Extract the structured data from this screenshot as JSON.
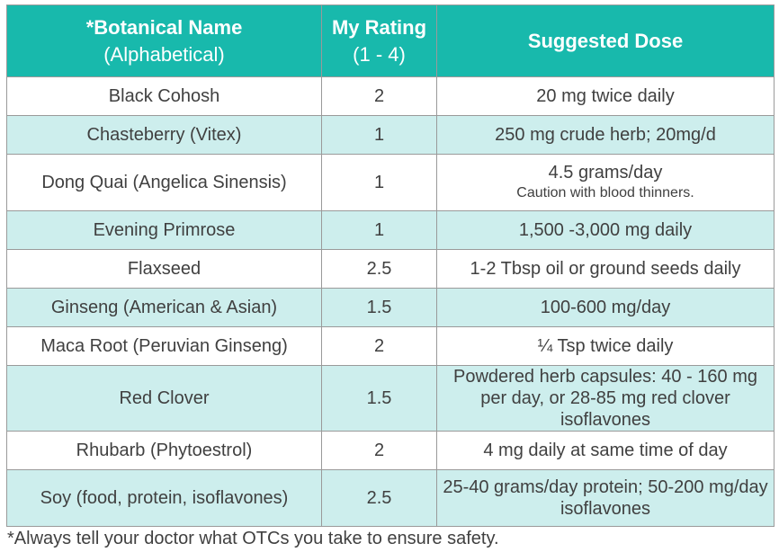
{
  "table": {
    "headers": [
      {
        "main": "*Botanical Name",
        "sub": "(Alphabetical)"
      },
      {
        "main": "My Rating",
        "sub": "(1 - 4)"
      },
      {
        "main": "Suggested Dose",
        "sub": ""
      }
    ],
    "rows": [
      {
        "name": "Black Cohosh",
        "rating": "2",
        "dose": "20 mg twice daily",
        "note": ""
      },
      {
        "name": "Chasteberry (Vitex)",
        "rating": "1",
        "dose": "250 mg crude herb; 20mg/d",
        "note": ""
      },
      {
        "name": "Dong Quai (Angelica Sinensis)",
        "rating": "1",
        "dose": "4.5 grams/day",
        "note": "Caution with blood thinners."
      },
      {
        "name": "Evening Primrose",
        "rating": "1",
        "dose": "1,500 -3,000 mg daily",
        "note": ""
      },
      {
        "name": "Flaxseed",
        "rating": "2.5",
        "dose": "1-2 Tbsp oil or ground seeds daily",
        "note": ""
      },
      {
        "name": "Ginseng (American & Asian)",
        "rating": "1.5",
        "dose": "100-600 mg/day",
        "note": ""
      },
      {
        "name": "Maca Root (Peruvian Ginseng)",
        "rating": "2",
        "dose": "¼ Tsp twice daily",
        "note": ""
      },
      {
        "name": "Red Clover",
        "rating": "1.5",
        "dose": "Powdered herb capsules: 40 - 160 mg per day, or 28-85 mg red clover isoflavones",
        "note": ""
      },
      {
        "name": "Rhubarb (Phytoestrol)",
        "rating": "2",
        "dose": "4 mg daily at same time of day",
        "note": ""
      },
      {
        "name": "Soy (food, protein, isoflavones)",
        "rating": "2.5",
        "dose": "25-40 grams/day protein; 50-200 mg/day isoflavones",
        "note": ""
      }
    ]
  },
  "footnote": "*Always tell your doctor what OTCs you take to ensure safety.",
  "colors": {
    "header_bg": "#18b9ac",
    "alt_row_bg": "#cdeeed"
  }
}
